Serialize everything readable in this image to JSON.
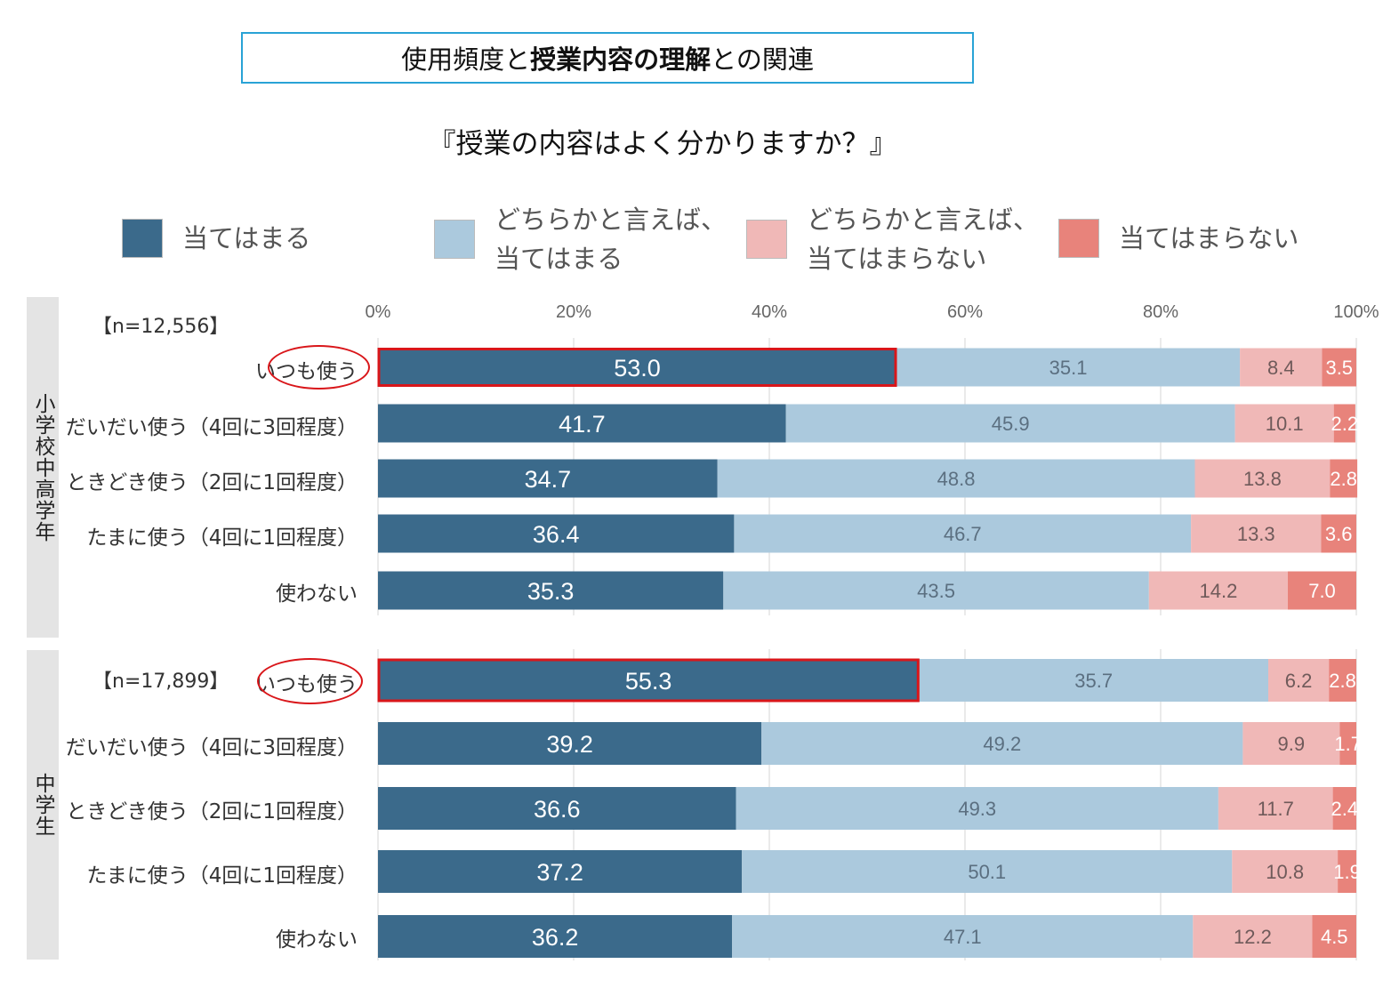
{
  "header": {
    "title_prefix": "使用頻度と",
    "title_bold": "授業内容の理解",
    "title_suffix": "との関連",
    "question": "『授業の内容はよく分かりますか？』"
  },
  "colors": {
    "atehamaru": "#3b6a8b",
    "dochira_atehamaru": "#abc9dd",
    "dochira_atehamaranai": "#f0b8b7",
    "atehamaranai": "#e8837b",
    "highlight": "#d9161a",
    "title_border": "#29a3d6"
  },
  "legend": [
    {
      "label": "当てはまる"
    },
    {
      "label": "どちらかと言えば、\n当てはまる"
    },
    {
      "label": "どちらかと言えば、\n当てはまらない"
    },
    {
      "label": "当てはまらない"
    }
  ],
  "groups": [
    {
      "name": "小学校中高学年",
      "n": "【n=12,556】"
    },
    {
      "name": "中学生",
      "n": "【n=17,899】"
    }
  ],
  "chart_data": {
    "type": "bar",
    "orientation": "horizontal",
    "stacked": "100%",
    "xlim": [
      0,
      100
    ],
    "x_ticks": [
      "0%",
      "20%",
      "40%",
      "60%",
      "80%",
      "100%"
    ],
    "series": [
      {
        "name": "当てはまる"
      },
      {
        "name": "どちらかと言えば、当てはまる"
      },
      {
        "name": "どちらかと言えば、当てはまらない"
      },
      {
        "name": "当てはまらない"
      }
    ],
    "groups": [
      {
        "name": "小学校中高学年",
        "n": "【n=12,556】",
        "rows": [
          {
            "category": "いつも使う",
            "values": [
              53.0,
              35.1,
              8.4,
              3.5
            ],
            "labels": [
              "53.0",
              "35.1",
              "8.4",
              "3.5"
            ],
            "highlight": true
          },
          {
            "category": "だいだい使う（4回に3回程度）",
            "values": [
              41.7,
              45.9,
              10.1,
              2.2
            ],
            "labels": [
              "41.7",
              "45.9",
              "10.1",
              "2.2"
            ]
          },
          {
            "category": "ときどき使う（2回に1回程度）",
            "values": [
              34.7,
              48.8,
              13.8,
              2.8
            ],
            "labels": [
              "34.7",
              "48.8",
              "13.8",
              "2.8"
            ]
          },
          {
            "category": "たまに使う（4回に1回程度）",
            "values": [
              36.4,
              46.7,
              13.3,
              3.6
            ],
            "labels": [
              "36.4",
              "46.7",
              "13.3",
              "3.6"
            ]
          },
          {
            "category": "使わない",
            "values": [
              35.3,
              43.5,
              14.2,
              7.0
            ],
            "labels": [
              "35.3",
              "43.5",
              "14.2",
              "7.0"
            ]
          }
        ]
      },
      {
        "name": "中学生",
        "n": "【n=17,899】",
        "rows": [
          {
            "category": "いつも使う",
            "values": [
              55.3,
              35.7,
              6.2,
              2.8
            ],
            "labels": [
              "55.3",
              "35.7",
              "6.2",
              "2.8"
            ],
            "highlight": true
          },
          {
            "category": "だいだい使う（4回に3回程度）",
            "values": [
              39.2,
              49.2,
              9.9,
              1.7
            ],
            "labels": [
              "39.2",
              "49.2",
              "9.9",
              "1.7"
            ]
          },
          {
            "category": "ときどき使う（2回に1回程度）",
            "values": [
              36.6,
              49.3,
              11.7,
              2.4
            ],
            "labels": [
              "36.6",
              "49.3",
              "11.7",
              "2.4"
            ]
          },
          {
            "category": "たまに使う（4回に1回程度）",
            "values": [
              37.2,
              50.1,
              10.8,
              1.9
            ],
            "labels": [
              "37.2",
              "50.1",
              "10.8",
              "1.9"
            ]
          },
          {
            "category": "使わない",
            "values": [
              36.2,
              47.1,
              12.2,
              4.5
            ],
            "labels": [
              "36.2",
              "47.1",
              "12.2",
              "4.5"
            ]
          }
        ]
      }
    ]
  }
}
